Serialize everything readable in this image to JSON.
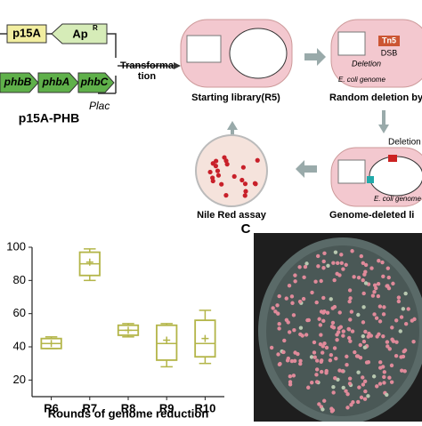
{
  "diagram": {
    "plasmid": {
      "ori": "p15A",
      "resistance": "Ap",
      "resistance_sup": "R",
      "genes": [
        "phbB",
        "phbA",
        "phbC"
      ],
      "promoter": "Plac",
      "name": "p15A-PHB"
    },
    "transformation": [
      "Transforma",
      "tion"
    ],
    "starting_library": "Starting library(R5)",
    "random_deletion": "Random deletion by",
    "deletion_top": "Deletion",
    "tn5": "Tn5",
    "dsb": "DSB",
    "genome_label": "E. coli genome",
    "deletion_bottom": "Deletion",
    "genome_deleted": "Genome-deleted li",
    "nile_red": "Nile Red assay"
  },
  "panel_label": "C",
  "chart_data": {
    "type": "box",
    "color": "#b3b548",
    "categories": [
      "R6",
      "R7",
      "R8",
      "R9",
      "R10"
    ],
    "boxes": [
      {
        "min": 39,
        "q1": 39,
        "median": 42,
        "q3": 45,
        "max": 46,
        "mean": 42
      },
      {
        "min": 80,
        "q1": 83,
        "median": 90,
        "q3": 97,
        "max": 99,
        "mean": 91
      },
      {
        "min": 46,
        "q1": 47,
        "median": 50,
        "q3": 53,
        "max": 54,
        "mean": 50
      },
      {
        "min": 28,
        "q1": 32,
        "median": 42,
        "q3": 53,
        "max": 54,
        "mean": 44
      },
      {
        "min": 30,
        "q1": 34,
        "median": 42,
        "q3": 56,
        "max": 62,
        "mean": 45
      }
    ],
    "ylim": [
      10,
      100
    ],
    "yticks": [
      20,
      40,
      60,
      80,
      100
    ],
    "xlabel": "Rounds of genome reduction"
  }
}
